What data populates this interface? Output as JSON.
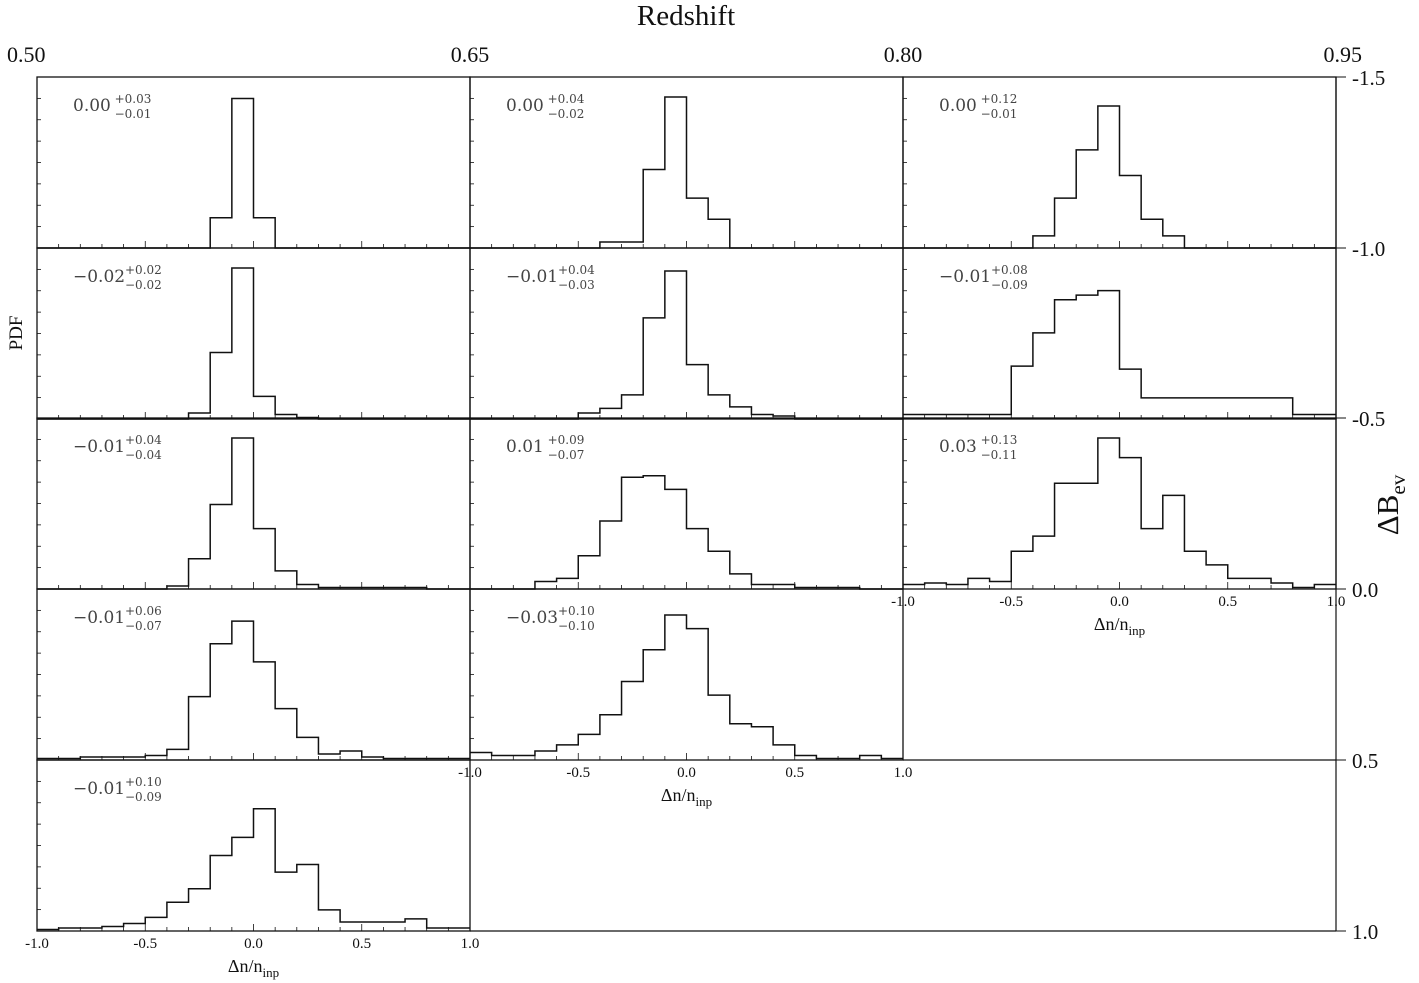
{
  "chart_data": {
    "type": "histogram-grid",
    "top_axis": {
      "label": "Redshift",
      "ticks": [
        "0.50",
        "0.65",
        "0.80",
        "0.95"
      ]
    },
    "right_axis": {
      "label": "ΔB",
      "label_sub": "ev",
      "ticks": [
        "-1.5",
        "-1.0",
        "-0.5",
        "0.0",
        "0.5",
        "1.0"
      ]
    },
    "ylabel": "PDF",
    "xlabel": "Δn/n",
    "xlabel_sub": "inp",
    "xlim": [
      -1.0,
      1.0
    ],
    "bin_edges": [
      -1.0,
      -0.9,
      -0.8,
      -0.7,
      -0.6,
      -0.5,
      -0.4,
      -0.3,
      -0.2,
      -0.1,
      0.0,
      0.1,
      0.2,
      0.3,
      0.4,
      0.5,
      0.6,
      0.7,
      0.8,
      0.9,
      1.0
    ],
    "xtick_labels": [
      "-1.0",
      "-0.5",
      "0.0",
      "0.5",
      "1.0"
    ],
    "panels": [
      {
        "col": 0,
        "row": 0,
        "annotation": {
          "value": "0.00",
          "plus": "+0.03",
          "minus": "−0.01"
        },
        "values": [
          0,
          0,
          0,
          0,
          0,
          0,
          0,
          0,
          0.2,
          0.99,
          0.2,
          0,
          0,
          0,
          0,
          0,
          0,
          0,
          0,
          0
        ]
      },
      {
        "col": 1,
        "row": 0,
        "annotation": {
          "value": "0.00",
          "plus": "+0.04",
          "minus": "−0.02"
        },
        "values": [
          0,
          0,
          0,
          0,
          0,
          0,
          0.04,
          0.04,
          0.52,
          1.0,
          0.33,
          0.19,
          0,
          0,
          0,
          0,
          0,
          0,
          0,
          0
        ]
      },
      {
        "col": 2,
        "row": 0,
        "annotation": {
          "value": "0.00",
          "plus": "+0.12",
          "minus": "−0.01"
        },
        "values": [
          0,
          0,
          0,
          0,
          0,
          0,
          0.08,
          0.33,
          0.65,
          0.94,
          0.48,
          0.19,
          0.08,
          0,
          0,
          0,
          0,
          0,
          0,
          0
        ]
      },
      {
        "col": 0,
        "row": 1,
        "annotation": {
          "value": "−0.02",
          "plus": "+0.02",
          "minus": "−0.02"
        },
        "values": [
          0,
          0,
          0,
          0,
          0,
          0,
          0,
          0.04,
          0.44,
          1.0,
          0.15,
          0.03,
          0.01,
          0,
          0,
          0,
          0,
          0,
          0,
          0
        ]
      },
      {
        "col": 1,
        "row": 1,
        "annotation": {
          "value": "−0.01",
          "plus": "+0.04",
          "minus": "−0.03"
        },
        "values": [
          0,
          0,
          0,
          0,
          0,
          0.04,
          0.07,
          0.16,
          0.67,
          0.98,
          0.36,
          0.16,
          0.08,
          0.03,
          0.02,
          0,
          0,
          0,
          0,
          0
        ]
      },
      {
        "col": 2,
        "row": 1,
        "annotation": {
          "value": "−0.01",
          "plus": "+0.08",
          "minus": "−0.09"
        },
        "values": [
          0.03,
          0.03,
          0.03,
          0.03,
          0.03,
          0.35,
          0.57,
          0.79,
          0.82,
          0.85,
          0.33,
          0.14,
          0.14,
          0.14,
          0.14,
          0.14,
          0.14,
          0.14,
          0.03,
          0.03
        ]
      },
      {
        "col": 0,
        "row": 2,
        "annotation": {
          "value": "−0.01",
          "plus": "+0.04",
          "minus": "−0.04"
        },
        "values": [
          0,
          0,
          0,
          0,
          0,
          0,
          0.02,
          0.2,
          0.56,
          1.0,
          0.4,
          0.12,
          0.03,
          0.01,
          0.01,
          0.01,
          0.01,
          0.01,
          0,
          0
        ]
      },
      {
        "col": 1,
        "row": 2,
        "annotation": {
          "value": "0.01",
          "plus": "+0.09",
          "minus": "−0.07"
        },
        "values": [
          0,
          0,
          0,
          0.05,
          0.07,
          0.22,
          0.45,
          0.74,
          0.75,
          0.66,
          0.4,
          0.25,
          0.1,
          0.03,
          0.03,
          0.01,
          0.01,
          0.01,
          0,
          0
        ]
      },
      {
        "col": 2,
        "row": 2,
        "annotation": {
          "value": "0.03",
          "plus": "+0.13",
          "minus": "−0.11"
        },
        "values": [
          0.03,
          0.04,
          0.03,
          0.07,
          0.05,
          0.25,
          0.35,
          0.7,
          0.7,
          1.0,
          0.87,
          0.4,
          0.62,
          0.25,
          0.16,
          0.07,
          0.07,
          0.04,
          0.01,
          0.03
        ]
      },
      {
        "col": 0,
        "row": 3,
        "annotation": {
          "value": "−0.01",
          "plus": "+0.06",
          "minus": "−0.07"
        },
        "values": [
          0.01,
          0.01,
          0.02,
          0.02,
          0.02,
          0.03,
          0.07,
          0.42,
          0.77,
          0.92,
          0.65,
          0.34,
          0.15,
          0.04,
          0.06,
          0.02,
          0.01,
          0.01,
          0.01,
          0.01
        ]
      },
      {
        "col": 1,
        "row": 3,
        "annotation": {
          "value": "−0.03",
          "plus": "+0.10",
          "minus": "−0.10"
        },
        "values": [
          0.05,
          0.03,
          0.03,
          0.06,
          0.1,
          0.17,
          0.3,
          0.52,
          0.73,
          0.96,
          0.87,
          0.43,
          0.24,
          0.22,
          0.1,
          0.03,
          0.01,
          0.01,
          0.03,
          0.01
        ]
      },
      {
        "col": 0,
        "row": 4,
        "annotation": {
          "value": "−0.01",
          "plus": "+0.10",
          "minus": "−0.09"
        },
        "values": [
          0.01,
          0.02,
          0.02,
          0.03,
          0.05,
          0.09,
          0.19,
          0.28,
          0.5,
          0.62,
          0.81,
          0.39,
          0.44,
          0.14,
          0.06,
          0.06,
          0.06,
          0.08,
          0.02,
          0.02
        ]
      }
    ],
    "x_axis_rows": [
      {
        "col": 0,
        "below_row": 4
      },
      {
        "col": 1,
        "below_row": 3
      },
      {
        "col": 2,
        "below_row": 2
      }
    ]
  }
}
